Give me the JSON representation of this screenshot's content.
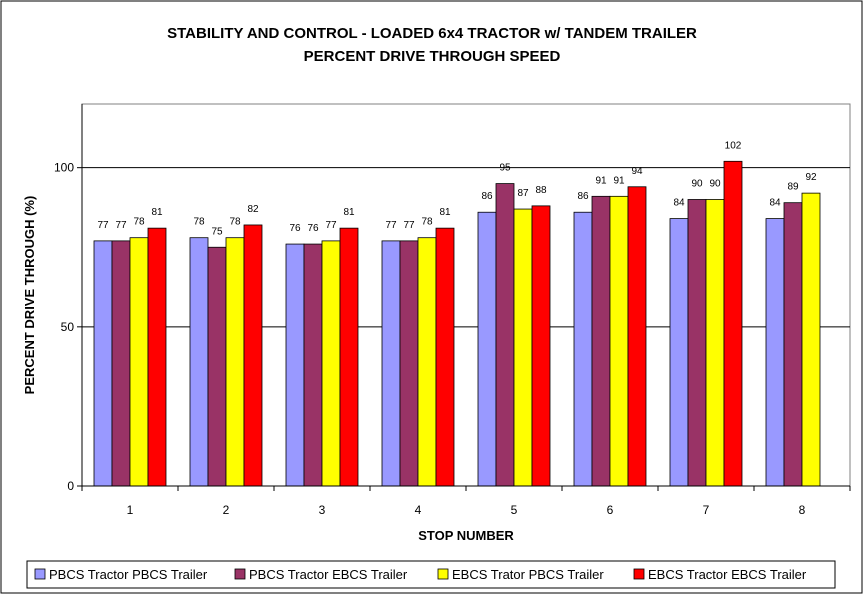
{
  "chart_data": {
    "type": "bar",
    "title": "STABILITY AND CONTROL - LOADED 6x4 TRACTOR w/ TANDEM TRAILER",
    "subtitle": "PERCENT DRIVE THROUGH SPEED",
    "xlabel": "STOP NUMBER",
    "ylabel": "PERCENT DRIVE THROUGH (%)",
    "ylim": [
      0,
      120
    ],
    "yticks": [
      "0",
      "50",
      "100"
    ],
    "grid": true,
    "legend_position": "bottom",
    "categories": [
      "1",
      "2",
      "3",
      "4",
      "5",
      "6",
      "7",
      "8"
    ],
    "series": [
      {
        "name": "PBCS Tractor PBCS Trailer",
        "color": "#9999ff",
        "values": [
          77,
          78,
          76,
          77,
          86,
          86,
          84,
          84
        ],
        "labels": [
          "77",
          "78",
          "76",
          "77",
          "86",
          "86",
          "84",
          "84"
        ]
      },
      {
        "name": "PBCS Tractor EBCS Trailer",
        "color": "#993366",
        "values": [
          77,
          75,
          76,
          77,
          95,
          91,
          90,
          89
        ],
        "labels": [
          "77",
          "75",
          "76",
          "77",
          "95",
          "91",
          "90",
          "89"
        ]
      },
      {
        "name": "EBCS Trator PBCS Trailer",
        "color": "#ffff00",
        "values": [
          78,
          78,
          77,
          78,
          87,
          91,
          90,
          92
        ],
        "labels": [
          "78",
          "78",
          "77",
          "78",
          "87",
          "91",
          "90",
          "92"
        ]
      },
      {
        "name": "EBCS Tractor EBCS Trailer",
        "color": "#ff0000",
        "values": [
          81,
          82,
          81,
          81,
          88,
          94,
          102,
          null
        ],
        "labels": [
          "81",
          "82",
          "81",
          "81",
          "88",
          "94",
          "102",
          ""
        ]
      }
    ]
  }
}
